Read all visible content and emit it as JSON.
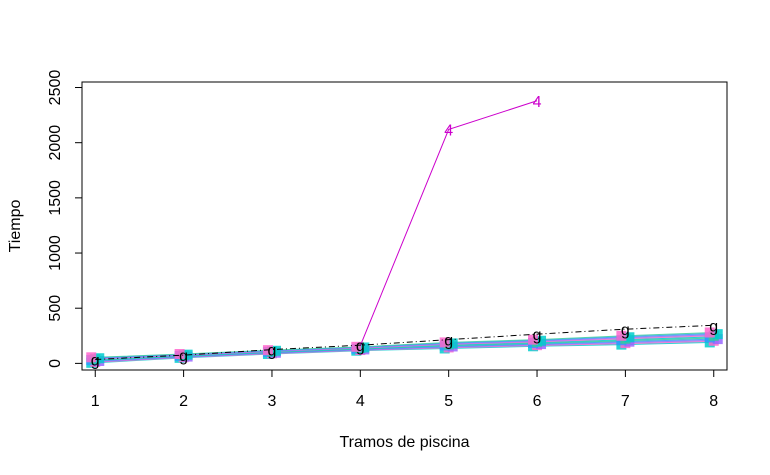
{
  "chart_data": {
    "type": "line",
    "title": "",
    "xlabel": "Tramos de piscina",
    "ylabel": "Tiempo",
    "x": [
      1,
      2,
      3,
      4,
      5,
      6,
      7,
      8
    ],
    "xlim": [
      0.85,
      8.15
    ],
    "ylim": [
      -60,
      2550
    ],
    "xticks": [
      "1",
      "2",
      "3",
      "4",
      "5",
      "6",
      "7",
      "8"
    ],
    "yticks": [
      "0",
      "500",
      "1000",
      "1500",
      "2000",
      "2500"
    ],
    "grid": false,
    "legend": "none",
    "background_band": {
      "description": "many overlapping thin series with cyan/pink/purple point markers",
      "lower": [
        5,
        50,
        85,
        115,
        135,
        155,
        170,
        190
      ],
      "upper": [
        55,
        85,
        120,
        150,
        190,
        215,
        250,
        280
      ],
      "colors": [
        "#00cccc",
        "#ff66cc",
        "#9966ff",
        "#3399ff",
        "#33cc99"
      ]
    },
    "series": [
      {
        "marker": "4",
        "color": "#cc00cc",
        "values": [
          null,
          null,
          null,
          160,
          2120,
          2380,
          null,
          null
        ],
        "labeled_points": [
          5,
          6
        ]
      },
      {
        "marker": "g",
        "color": "#000000",
        "line_style": "dashdot",
        "values": [
          35,
          75,
          125,
          165,
          215,
          265,
          310,
          345
        ],
        "labeled_points": [
          1,
          2,
          3,
          4,
          5,
          6,
          7,
          8
        ]
      }
    ]
  }
}
